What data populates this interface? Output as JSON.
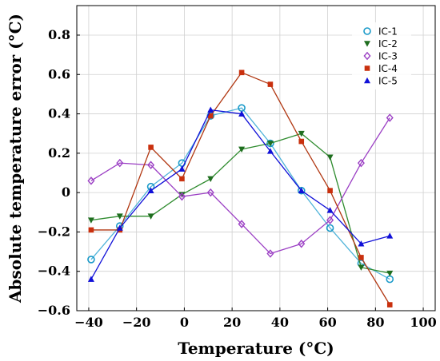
{
  "chart_data": {
    "type": "line",
    "xlabel": "Temperature (°C)",
    "ylabel": "Absolute temperature error (°C)",
    "xlim": [
      -45,
      105
    ],
    "ylim": [
      -0.6,
      0.95
    ],
    "xticks": [
      -40,
      -20,
      0,
      20,
      40,
      60,
      80,
      100
    ],
    "xtick_labels": [
      "−40",
      "−20",
      "0",
      "20",
      "40",
      "60",
      "80",
      "100"
    ],
    "yticks": [
      -0.6,
      -0.4,
      -0.2,
      0,
      0.2,
      0.4,
      0.6,
      0.8
    ],
    "ytick_labels": [
      "−0.6",
      "−0.4",
      "−0.2",
      "0",
      "0.2",
      "0.4",
      "0.6",
      "0.8"
    ],
    "grid": true,
    "legend_position": "top-right",
    "series": [
      {
        "name": "IC-1",
        "marker": "circle",
        "line_color": "#4fb3d9",
        "marker_color": "#1a9ac9",
        "x": [
          -39,
          -27,
          -14,
          -1,
          11,
          24,
          36,
          49,
          61,
          74,
          86
        ],
        "y": [
          -0.34,
          -0.17,
          0.03,
          0.15,
          0.39,
          0.43,
          0.25,
          0.01,
          -0.18,
          -0.36,
          -0.44
        ]
      },
      {
        "name": "IC-2",
        "marker": "triangle-down",
        "line_color": "#2e8b2e",
        "marker_color": "#1f6e1f",
        "x": [
          -39,
          -27,
          -14,
          -1,
          11,
          24,
          36,
          49,
          61,
          74,
          86
        ],
        "y": [
          -0.14,
          -0.12,
          -0.12,
          -0.01,
          0.07,
          0.22,
          0.25,
          0.3,
          0.18,
          -0.38,
          -0.41
        ]
      },
      {
        "name": "IC-3",
        "marker": "diamond",
        "line_color": "#9b3fc4",
        "marker_color": "#9b3fc4",
        "x": [
          -39,
          -27,
          -14,
          -1,
          11,
          24,
          36,
          49,
          61,
          74,
          86
        ],
        "y": [
          0.06,
          0.15,
          0.14,
          -0.02,
          0.0,
          -0.16,
          -0.31,
          -0.26,
          -0.14,
          0.15,
          0.38
        ]
      },
      {
        "name": "IC-4",
        "marker": "square",
        "line_color": "#b0350f",
        "marker_color": "#c9300e",
        "x": [
          -39,
          -27,
          -14,
          -1,
          11,
          24,
          36,
          49,
          61,
          74,
          86
        ],
        "y": [
          -0.19,
          -0.19,
          0.23,
          0.07,
          0.39,
          0.61,
          0.55,
          0.26,
          0.01,
          -0.33,
          -0.57
        ]
      },
      {
        "name": "IC-5",
        "marker": "triangle-up",
        "line_color": "#1010d8",
        "marker_color": "#1010d8",
        "x": [
          -39,
          -27,
          -14,
          -1,
          11,
          24,
          36,
          49,
          61,
          74,
          86
        ],
        "y": [
          -0.44,
          -0.18,
          0.01,
          0.12,
          0.42,
          0.4,
          0.21,
          0.01,
          -0.09,
          -0.26,
          -0.22
        ]
      }
    ]
  }
}
